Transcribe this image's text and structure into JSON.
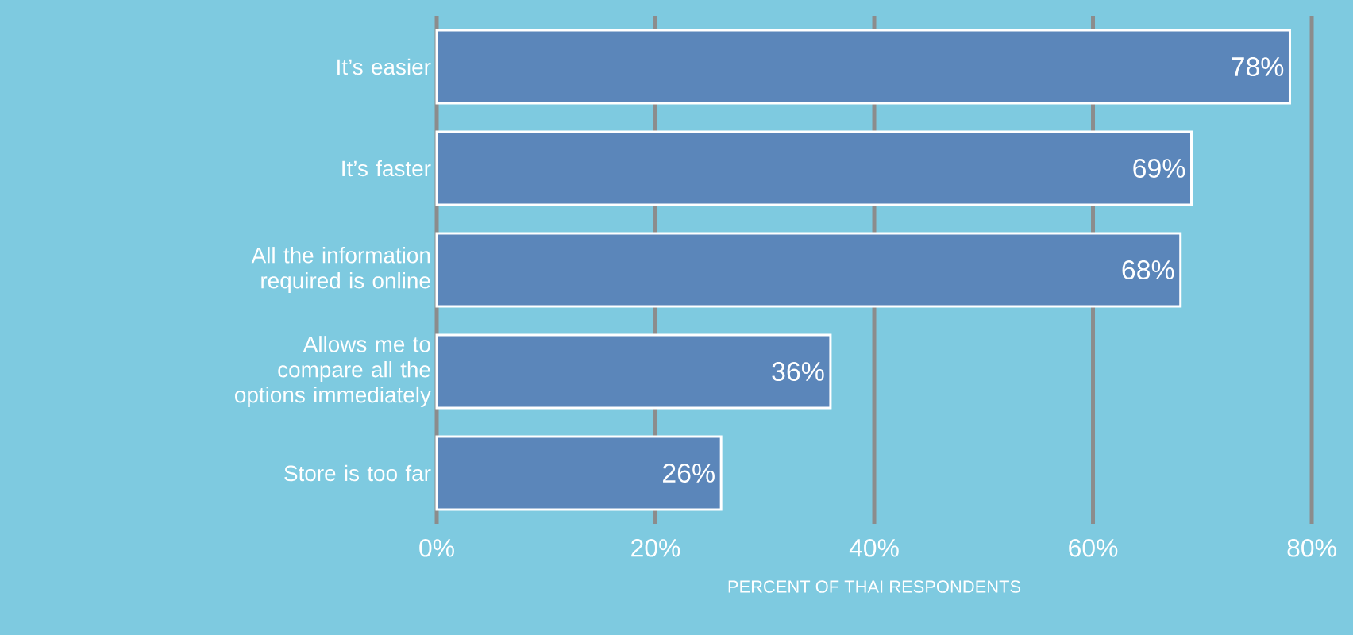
{
  "chart_data": {
    "type": "bar",
    "orientation": "horizontal",
    "categories": [
      "It’s easier",
      "It’s faster",
      "All the information required is online",
      "Allows me to compare all the options immediately",
      "Store is too far"
    ],
    "values": [
      78,
      69,
      68,
      36,
      26
    ],
    "value_labels": [
      "78%",
      "69%",
      "68%",
      "36%",
      "26%"
    ],
    "color": "#5b86ba",
    "xlabel": "PERCENT OF THAI RESPONDENTS",
    "xlim": [
      0,
      80
    ],
    "xticks": [
      {
        "value": 0,
        "label": "0%"
      },
      {
        "value": 20,
        "label": "20%"
      },
      {
        "value": 40,
        "label": "40%"
      },
      {
        "value": 60,
        "label": "60%"
      },
      {
        "value": 80,
        "label": "80%"
      }
    ],
    "grid": "x"
  }
}
